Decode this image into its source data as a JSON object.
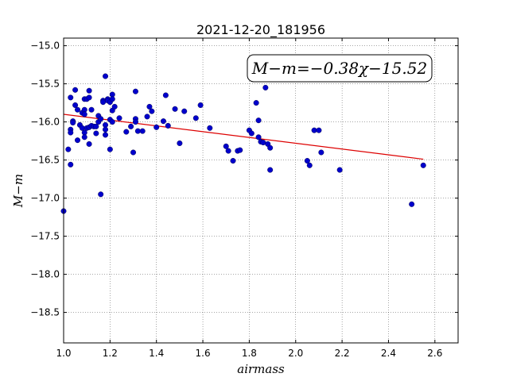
{
  "chart_data": {
    "type": "scatter",
    "title": "2021-12-20_181956",
    "xlabel": "airmass",
    "ylabel": "M−m",
    "xlim": [
      1.0,
      2.7
    ],
    "ylim": [
      -18.9,
      -14.9
    ],
    "grid": true,
    "xticks": [
      "1.0",
      "1.2",
      "1.4",
      "1.6",
      "1.8",
      "2.0",
      "2.2",
      "2.4",
      "2.6"
    ],
    "xtick_values": [
      1.0,
      1.2,
      1.4,
      1.6,
      1.8,
      2.0,
      2.2,
      2.4,
      2.6
    ],
    "yticks": [
      "−15.0",
      "−15.5",
      "−16.0",
      "−16.5",
      "−17.0",
      "−17.5",
      "−18.0",
      "−18.5"
    ],
    "ytick_values": [
      -15.0,
      -15.5,
      -16.0,
      -16.5,
      -17.0,
      -17.5,
      -18.0,
      -18.5
    ],
    "annotation": "M−m=−0.38χ−15.52",
    "fit": {
      "slope": -0.38,
      "intercept": -15.52,
      "x_range": [
        1.0,
        2.55
      ],
      "color": "#dd0000"
    },
    "marker_color": "#0000cc",
    "points": [
      [
        1.0,
        -17.17
      ],
      [
        1.02,
        -16.36
      ],
      [
        1.03,
        -16.1
      ],
      [
        1.03,
        -16.14
      ],
      [
        1.03,
        -16.56
      ],
      [
        1.03,
        -15.68
      ],
      [
        1.04,
        -15.99
      ],
      [
        1.04,
        -16.01
      ],
      [
        1.05,
        -15.58
      ],
      [
        1.05,
        -15.78
      ],
      [
        1.06,
        -15.84
      ],
      [
        1.06,
        -16.24
      ],
      [
        1.07,
        -16.04
      ],
      [
        1.08,
        -15.88
      ],
      [
        1.08,
        -16.08
      ],
      [
        1.09,
        -15.7
      ],
      [
        1.09,
        -15.84
      ],
      [
        1.09,
        -15.9
      ],
      [
        1.09,
        -16.14
      ],
      [
        1.09,
        -16.2
      ],
      [
        1.1,
        -15.7
      ],
      [
        1.1,
        -16.08
      ],
      [
        1.11,
        -15.68
      ],
      [
        1.11,
        -16.07
      ],
      [
        1.11,
        -16.29
      ],
      [
        1.11,
        -15.59
      ],
      [
        1.12,
        -16.05
      ],
      [
        1.12,
        -15.84
      ],
      [
        1.13,
        -16.06
      ],
      [
        1.14,
        -16.15
      ],
      [
        1.14,
        -16.06
      ],
      [
        1.15,
        -16.0
      ],
      [
        1.15,
        -15.92
      ],
      [
        1.16,
        -16.95
      ],
      [
        1.16,
        -15.96
      ],
      [
        1.17,
        -15.72
      ],
      [
        1.17,
        -15.74
      ],
      [
        1.18,
        -15.4
      ],
      [
        1.18,
        -16.04
      ],
      [
        1.18,
        -16.1
      ],
      [
        1.18,
        -16.17
      ],
      [
        1.19,
        -15.7
      ],
      [
        1.19,
        -15.72
      ],
      [
        1.2,
        -15.74
      ],
      [
        1.2,
        -15.97
      ],
      [
        1.2,
        -16.36
      ],
      [
        1.21,
        -15.64
      ],
      [
        1.21,
        -15.7
      ],
      [
        1.21,
        -16.0
      ],
      [
        1.21,
        -15.85
      ],
      [
        1.22,
        -15.8
      ],
      [
        1.24,
        -15.95
      ],
      [
        1.27,
        -16.13
      ],
      [
        1.29,
        -16.06
      ],
      [
        1.3,
        -16.4
      ],
      [
        1.31,
        -15.96
      ],
      [
        1.31,
        -15.6
      ],
      [
        1.31,
        -16.0
      ],
      [
        1.32,
        -16.12
      ],
      [
        1.34,
        -16.12
      ],
      [
        1.36,
        -15.93
      ],
      [
        1.37,
        -15.8
      ],
      [
        1.38,
        -15.86
      ],
      [
        1.4,
        -16.07
      ],
      [
        1.43,
        -15.99
      ],
      [
        1.44,
        -15.65
      ],
      [
        1.45,
        -16.05
      ],
      [
        1.48,
        -15.83
      ],
      [
        1.5,
        -16.28
      ],
      [
        1.52,
        -15.86
      ],
      [
        1.57,
        -15.95
      ],
      [
        1.59,
        -15.78
      ],
      [
        1.63,
        -16.08
      ],
      [
        1.7,
        -16.32
      ],
      [
        1.71,
        -16.38
      ],
      [
        1.73,
        -16.51
      ],
      [
        1.75,
        -16.38
      ],
      [
        1.76,
        -16.37
      ],
      [
        1.8,
        -16.11
      ],
      [
        1.81,
        -16.15
      ],
      [
        1.83,
        -15.75
      ],
      [
        1.84,
        -15.98
      ],
      [
        1.84,
        -16.2
      ],
      [
        1.85,
        -16.26
      ],
      [
        1.86,
        -16.27
      ],
      [
        1.87,
        -15.55
      ],
      [
        1.88,
        -16.29
      ],
      [
        1.89,
        -16.34
      ],
      [
        1.89,
        -16.63
      ],
      [
        2.05,
        -16.51
      ],
      [
        2.06,
        -16.57
      ],
      [
        2.08,
        -16.11
      ],
      [
        2.1,
        -16.11
      ],
      [
        2.11,
        -16.4
      ],
      [
        2.19,
        -16.63
      ],
      [
        2.5,
        -17.08
      ],
      [
        2.55,
        -16.57
      ]
    ]
  }
}
